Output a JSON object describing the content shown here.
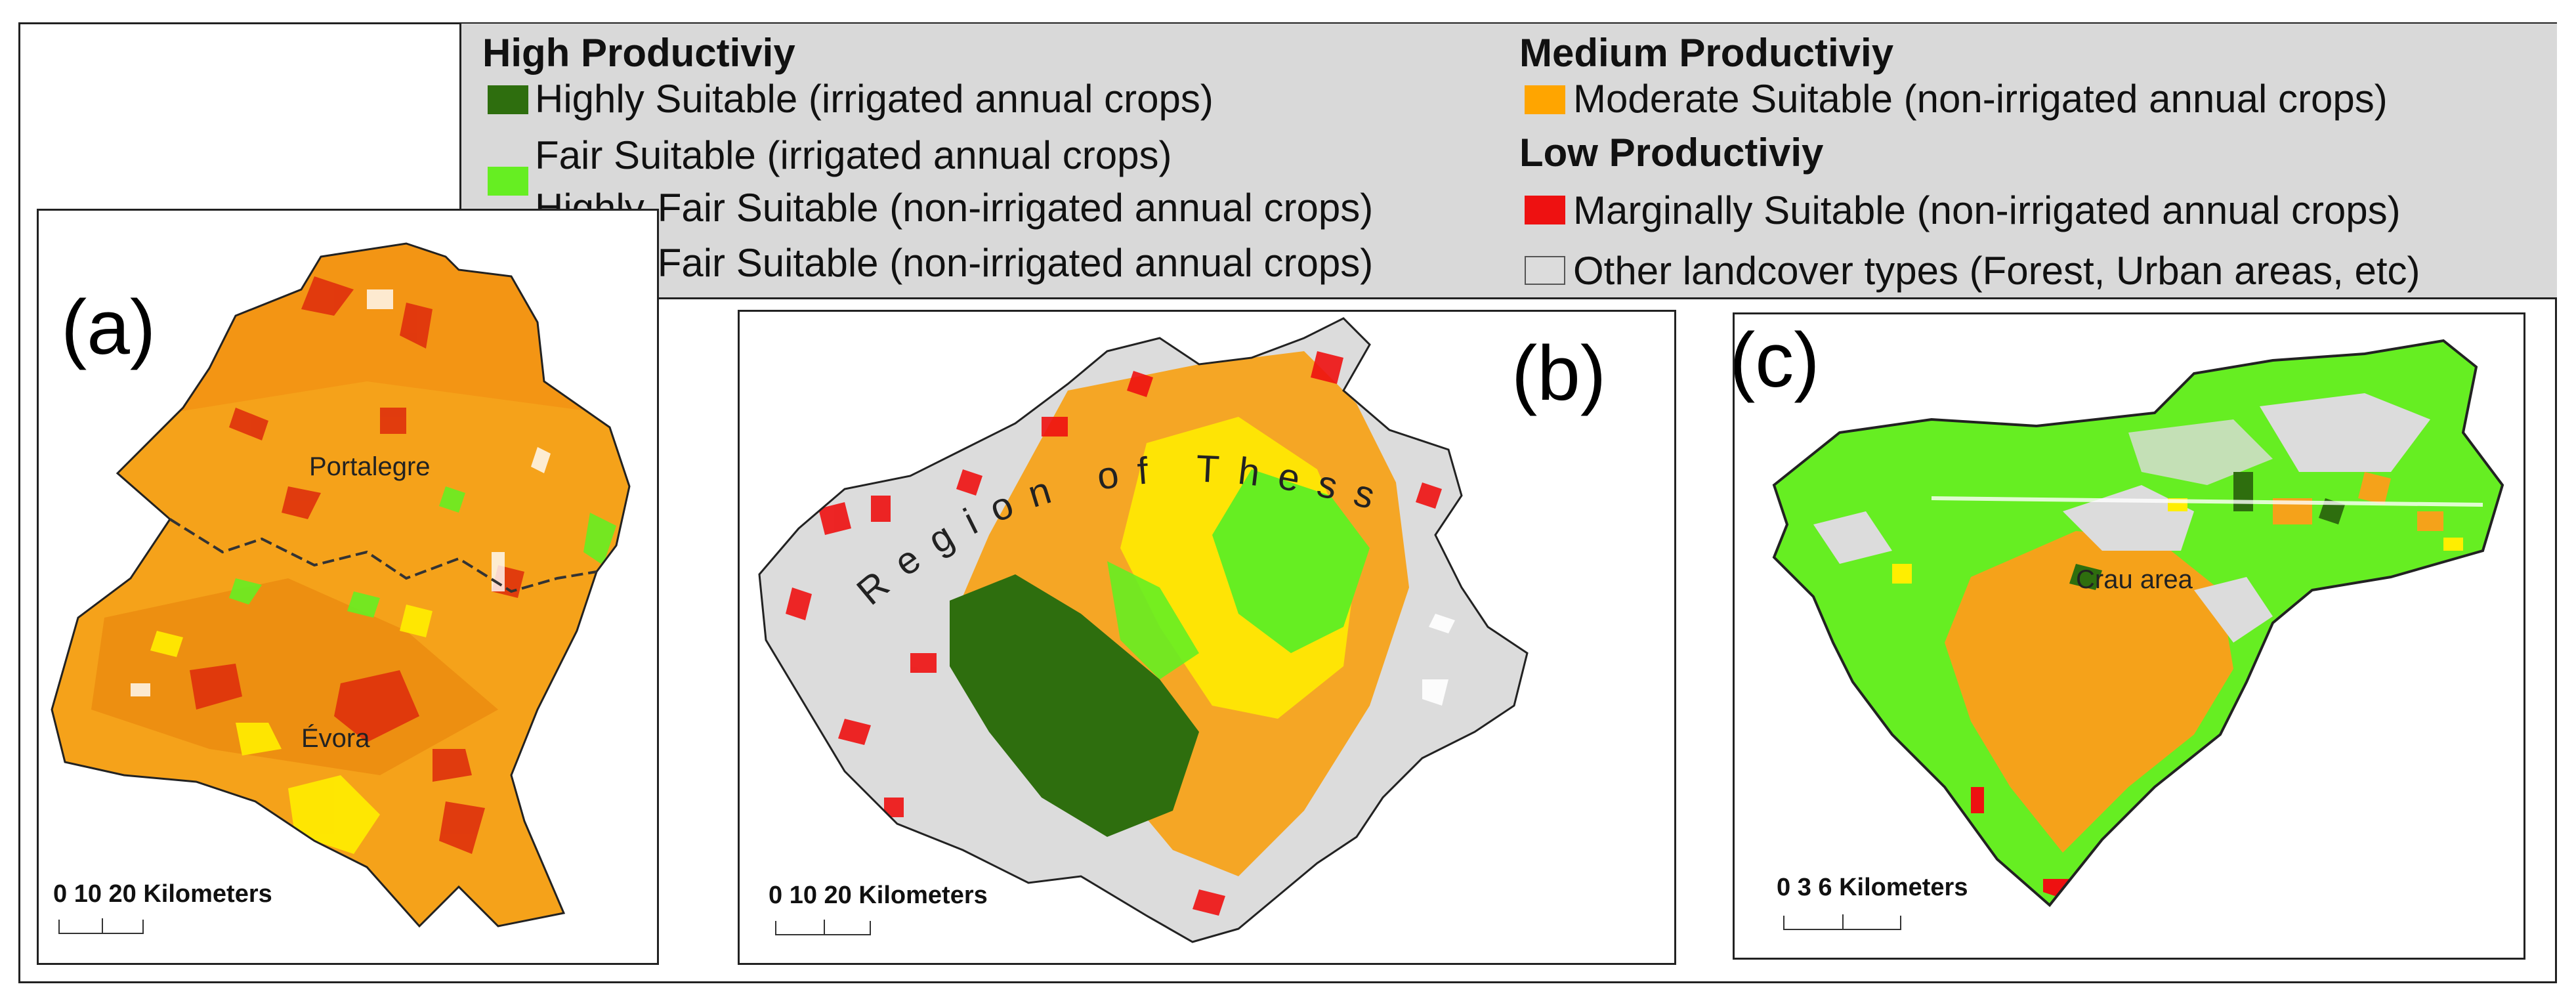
{
  "legend": {
    "high": {
      "heading": "High Productiviy",
      "items": [
        {
          "label": "Highly Suitable (irrigated annual crops)",
          "color": "#2e6e0e"
        },
        {
          "label": "Fair Suitable (irrigated annual crops)",
          "color": "#66ee22"
        },
        {
          "label": "Highly-Fair Suitable (non-irrigated annual crops)"
        },
        {
          "label": "Highly-Fair Suitable (non-irrigated annual crops)",
          "color": "#ffff00"
        }
      ]
    },
    "medium": {
      "heading": "Medium Productiviy",
      "items": [
        {
          "label": "Moderate Suitable (non-irrigated annual crops)",
          "color": "#ffa500"
        }
      ]
    },
    "low": {
      "heading": "Low Productiviy",
      "items": [
        {
          "label": "Marginally Suitable (non-irrigated annual crops)",
          "color": "#ee1111"
        },
        {
          "label": "Other landcover types (Forest, Urban areas, etc)",
          "color": "#dcdcdc"
        }
      ]
    }
  },
  "panels": {
    "a": {
      "label": "(a)",
      "places": [
        "Portalegre",
        "Évora"
      ],
      "scale": {
        "text": "0  10 20 Kilometers",
        "ticks": [
          0,
          10,
          20
        ],
        "unit": "Kilometers"
      }
    },
    "b": {
      "label": "(b)",
      "region_label": "Region of Thessaly",
      "scale": {
        "text": "0  10  20 Kilometers",
        "ticks": [
          0,
          10,
          20
        ],
        "unit": "Kilometers"
      }
    },
    "c": {
      "label": "(c)",
      "places": [
        "Crau area"
      ],
      "scale": {
        "text": "0    3    6 Kilometers",
        "ticks": [
          0,
          3,
          6
        ],
        "unit": "Kilometers"
      }
    }
  }
}
